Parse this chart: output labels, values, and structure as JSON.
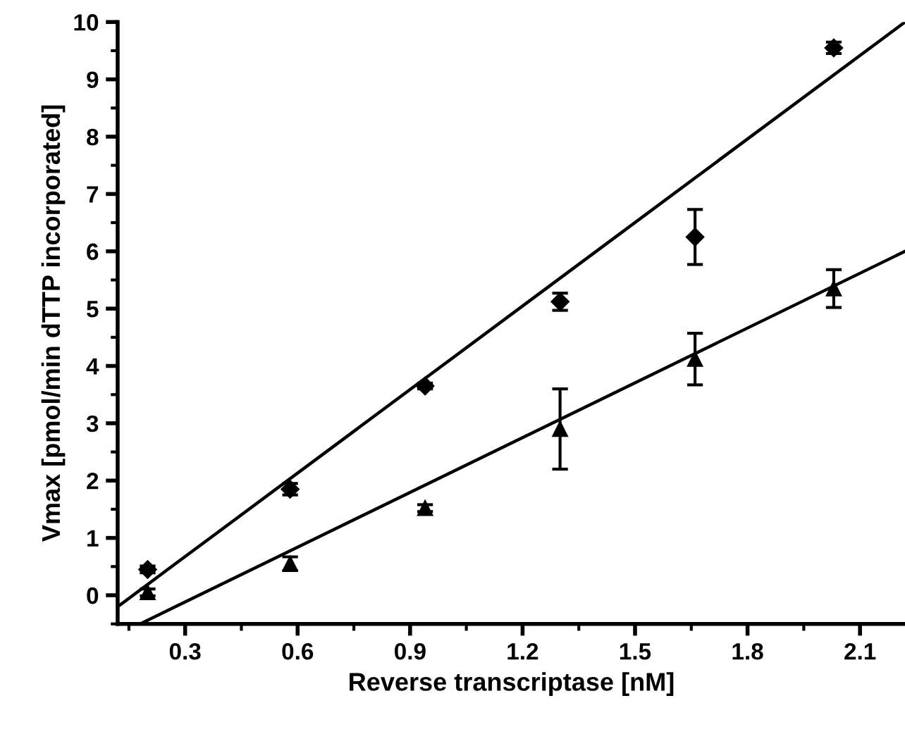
{
  "chart_data": {
    "type": "scatter",
    "xlabel": "Reverse transcriptase [nM]",
    "ylabel": "Vmax [pmol/min dTTP incorporated]",
    "xlim": [
      0.12,
      2.22
    ],
    "ylim": [
      -0.5,
      10
    ],
    "xticks": [
      0.3,
      0.6,
      0.9,
      1.2,
      1.5,
      1.8,
      2.1
    ],
    "yticks": [
      0,
      1,
      2,
      3,
      4,
      5,
      6,
      7,
      8,
      9,
      10
    ],
    "grid": false,
    "legend": false,
    "series": [
      {
        "marker": "diamond",
        "color": "#000000",
        "x": [
          0.2,
          0.58,
          0.94,
          1.3,
          1.66,
          2.03
        ],
        "values": [
          0.45,
          1.85,
          3.65,
          5.12,
          6.25,
          9.55
        ],
        "errors": [
          0.06,
          0.1,
          0.05,
          0.15,
          0.48,
          0.1
        ]
      },
      {
        "marker": "triangle",
        "color": "#000000",
        "x": [
          0.2,
          0.58,
          0.94,
          1.3,
          1.66,
          2.03
        ],
        "values": [
          0.05,
          0.55,
          1.52,
          2.9,
          4.12,
          5.35
        ],
        "errors": [
          0.06,
          0.12,
          0.06,
          0.7,
          0.45,
          0.33
        ]
      },
      {
        "type": "line",
        "marker": "none",
        "line_style": "solid",
        "color": "#000000",
        "x": [
          0.12,
          2.22
        ],
        "values": [
          -0.2,
          10.0
        ]
      },
      {
        "type": "line",
        "marker": "none",
        "line_style": "solid",
        "color": "#000000",
        "x": [
          0.18,
          2.22
        ],
        "values": [
          -0.5,
          6.0
        ]
      }
    ]
  }
}
